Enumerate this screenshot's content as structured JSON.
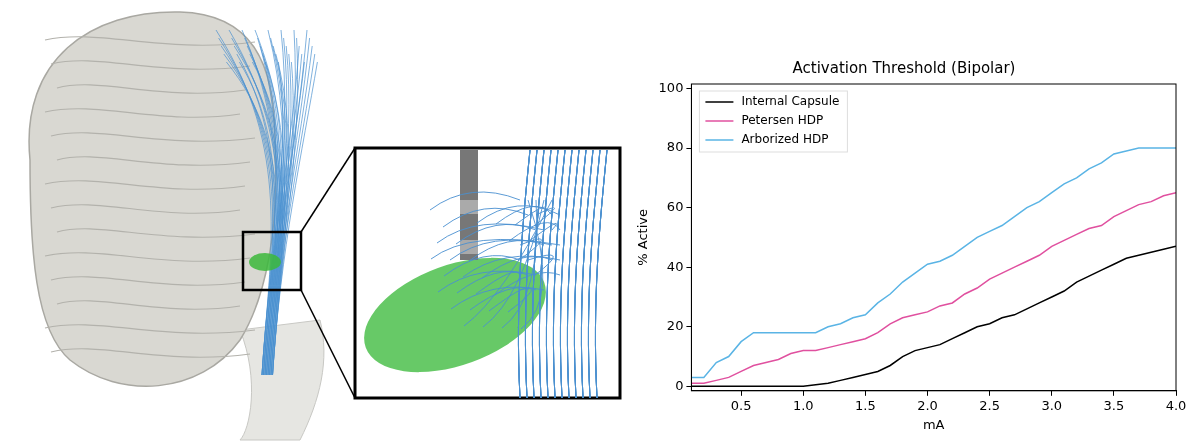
{
  "chart_data": {
    "type": "line",
    "title": "Activation Threshold (Bipolar)",
    "x_label": "mA",
    "y_label": "% Active",
    "x": [
      0.1,
      0.2,
      0.3,
      0.4,
      0.5,
      0.6,
      0.7,
      0.8,
      0.9,
      1.0,
      1.1,
      1.2,
      1.3,
      1.4,
      1.5,
      1.6,
      1.7,
      1.8,
      1.9,
      2.0,
      2.1,
      2.2,
      2.3,
      2.4,
      2.5,
      2.6,
      2.7,
      2.8,
      2.9,
      3.0,
      3.1,
      3.2,
      3.3,
      3.4,
      3.5,
      3.6,
      3.7,
      3.8,
      3.9,
      4.0
    ],
    "series": [
      {
        "name": "Internal Capsule",
        "color": "#000000",
        "values": [
          0,
          0,
          0,
          0,
          0,
          0,
          0,
          0,
          0,
          0,
          0.5,
          1,
          2,
          3,
          4,
          5,
          7,
          10,
          12,
          13,
          14,
          16,
          18,
          20,
          21,
          23,
          24,
          26,
          28,
          30,
          32,
          35,
          37,
          39,
          41,
          43,
          44,
          45,
          46,
          47
        ]
      },
      {
        "name": "Petersen HDP",
        "color": "#e0509f",
        "values": [
          1,
          1,
          2,
          3,
          5,
          7,
          8,
          9,
          11,
          12,
          12,
          13,
          14,
          15,
          16,
          18,
          21,
          23,
          24,
          25,
          27,
          28,
          31,
          33,
          36,
          38,
          40,
          42,
          44,
          47,
          49,
          51,
          53,
          54,
          57,
          59,
          61,
          62,
          64,
          65
        ]
      },
      {
        "name": "Arborized HDP",
        "color": "#5ab4e5",
        "values": [
          3,
          3,
          8,
          10,
          15,
          18,
          18,
          18,
          18,
          18,
          18,
          20,
          21,
          23,
          24,
          28,
          31,
          35,
          38,
          41,
          42,
          44,
          47,
          50,
          52,
          54,
          57,
          60,
          62,
          65,
          68,
          70,
          73,
          75,
          78,
          79,
          80,
          80,
          80,
          80
        ]
      }
    ],
    "xlim": [
      0.1,
      4.0
    ],
    "xticks": [
      0.5,
      {
        "value": 1,
        "label": "1.0"
      },
      1.5,
      {
        "value": 2,
        "label": "2.0"
      },
      2.5,
      {
        "value": 3,
        "label": "3.0"
      },
      3.5,
      {
        "value": 4,
        "label": "4.0"
      }
    ],
    "ylim": [
      -1.5,
      101.5
    ],
    "yticks": [
      0,
      20,
      40,
      60,
      80,
      100
    ],
    "grid": false,
    "legend": "upper left"
  }
}
